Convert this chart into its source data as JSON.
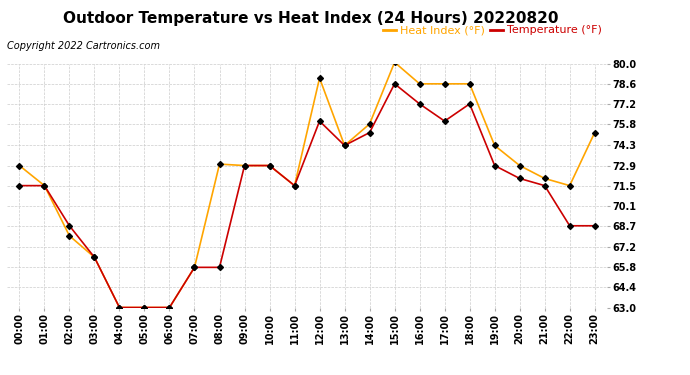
{
  "title": "Outdoor Temperature vs Heat Index (24 Hours) 20220820",
  "copyright": "Copyright 2022 Cartronics.com",
  "legend_heat": "Heat Index (°F)",
  "legend_temp": "Temperature (°F)",
  "hours": [
    "00:00",
    "01:00",
    "02:00",
    "03:00",
    "04:00",
    "05:00",
    "06:00",
    "07:00",
    "08:00",
    "09:00",
    "10:00",
    "11:00",
    "12:00",
    "13:00",
    "14:00",
    "15:00",
    "16:00",
    "17:00",
    "18:00",
    "19:00",
    "20:00",
    "21:00",
    "22:00",
    "23:00"
  ],
  "temperature": [
    71.5,
    71.5,
    68.7,
    66.5,
    63.0,
    63.0,
    63.0,
    65.8,
    65.8,
    72.9,
    72.9,
    71.5,
    76.0,
    74.3,
    75.2,
    78.6,
    77.2,
    76.0,
    77.2,
    72.9,
    72.0,
    71.5,
    68.7,
    68.7
  ],
  "heat_index": [
    72.9,
    71.5,
    68.0,
    66.5,
    63.0,
    63.0,
    63.0,
    65.8,
    73.0,
    72.9,
    72.9,
    71.5,
    79.0,
    74.3,
    75.8,
    80.1,
    78.6,
    78.6,
    78.6,
    74.3,
    72.9,
    72.0,
    71.5,
    75.2
  ],
  "heat_color": "#FFA500",
  "temp_color": "#CC0000",
  "marker_color": "#000000",
  "ylim_min": 63.0,
  "ylim_max": 80.0,
  "yticks": [
    80.0,
    78.6,
    77.2,
    75.8,
    74.3,
    72.9,
    71.5,
    70.1,
    68.7,
    67.2,
    65.8,
    64.4,
    63.0
  ],
  "background_color": "#ffffff",
  "grid_color": "#cccccc",
  "title_fontsize": 11,
  "copyright_fontsize": 7,
  "legend_fontsize": 8,
  "tick_fontsize": 7
}
